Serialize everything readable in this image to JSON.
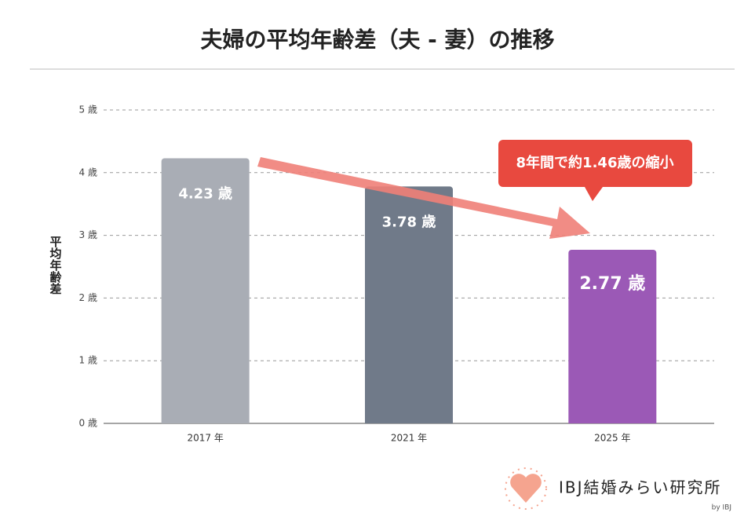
{
  "chart_data": {
    "type": "bar",
    "title": "夫婦の平均年齢差（夫 - 妻）の推移",
    "y_label": "平均年齢差",
    "categories": [
      "2017 年",
      "2021 年",
      "2025 年"
    ],
    "values": [
      4.23,
      3.78,
      2.77
    ],
    "value_labels": [
      "4.23 歳",
      "3.78 歳",
      "2.77 歳"
    ],
    "colors": [
      "#a9adb5",
      "#707a89",
      "#9b59b6"
    ],
    "ylim": [
      0,
      5
    ],
    "yticks": [
      {
        "value": 0,
        "label": "0 歳"
      },
      {
        "value": 1,
        "label": "1 歳"
      },
      {
        "value": 2,
        "label": "2 歳"
      },
      {
        "value": 3,
        "label": "3 歳"
      },
      {
        "value": 4,
        "label": "4 歳"
      },
      {
        "value": 5,
        "label": "5 歳"
      }
    ],
    "grid": true,
    "annotation": "8年間で約1.46歳の縮小"
  },
  "logo": {
    "name": "IBJ結婚みらい研究所",
    "by": "by IBJ"
  }
}
